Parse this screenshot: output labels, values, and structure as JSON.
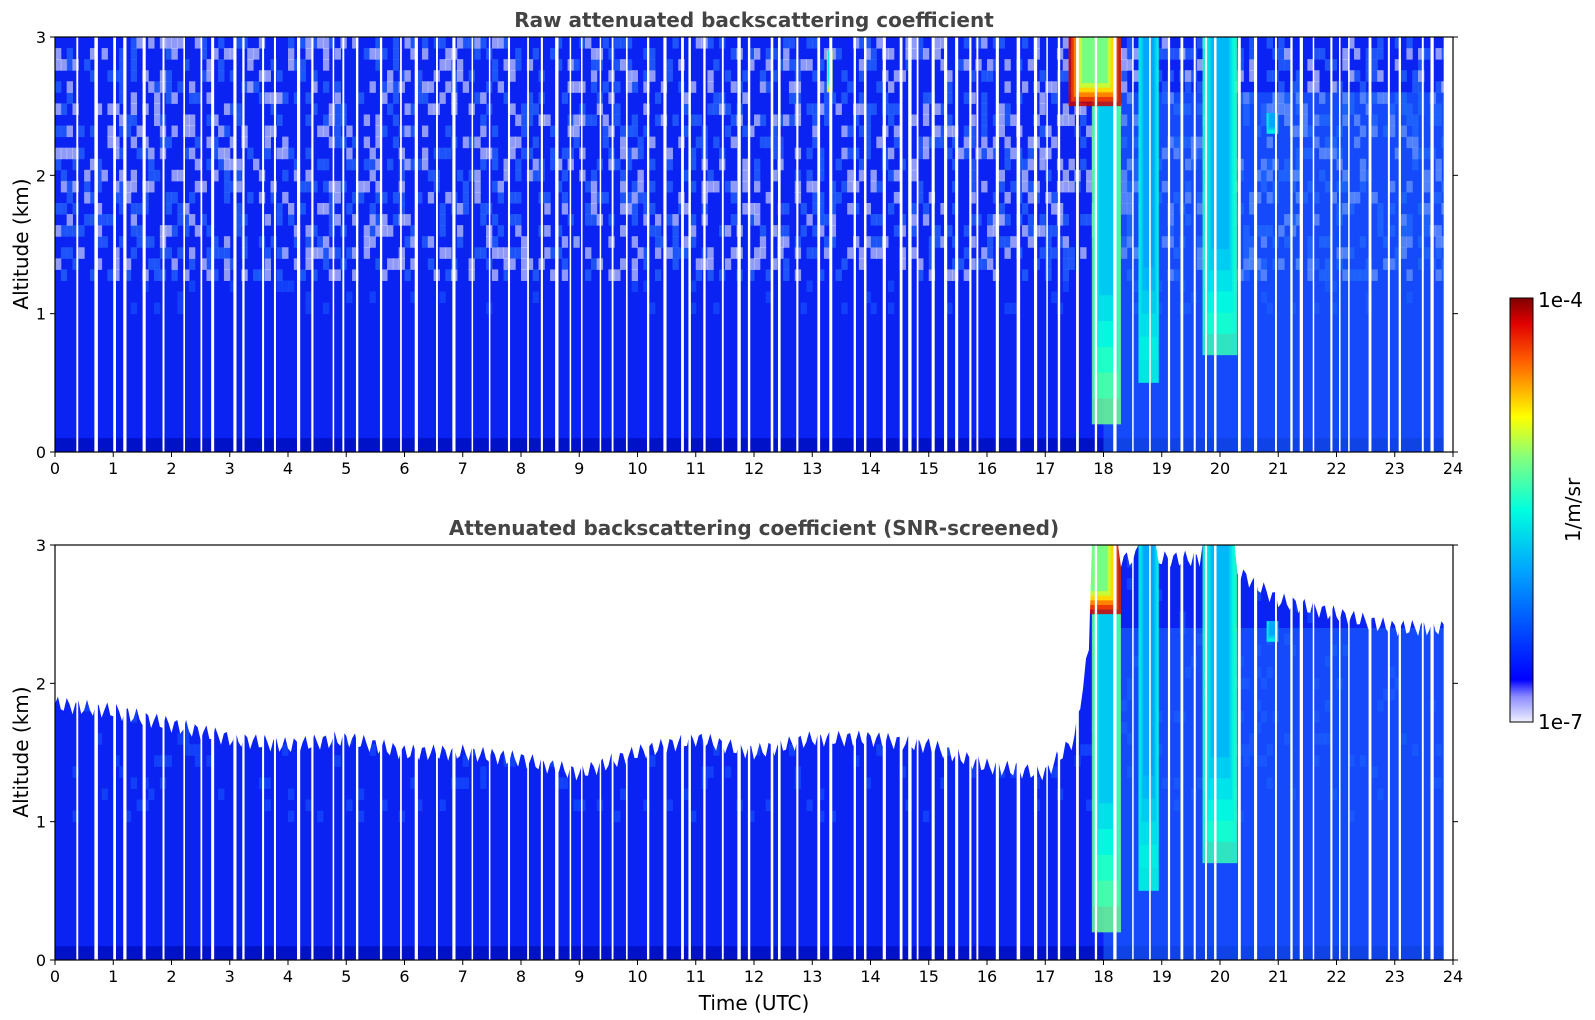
{
  "chart_data": [
    {
      "type": "heatmap",
      "title": "Raw attenuated backscattering coefficient",
      "xlabel": "",
      "ylabel": "Altitude (km)",
      "xlim": [
        0,
        24
      ],
      "ylim": [
        0,
        3
      ],
      "xticks": [
        "0",
        "1",
        "2",
        "3",
        "4",
        "5",
        "6",
        "7",
        "8",
        "9",
        "10",
        "11",
        "12",
        "13",
        "14",
        "15",
        "16",
        "17",
        "18",
        "19",
        "20",
        "21",
        "22",
        "23",
        "24"
      ],
      "yticks": [
        "0",
        "1",
        "2",
        "3"
      ],
      "screened": false
    },
    {
      "type": "heatmap",
      "title": "Attenuated backscattering coefficient (SNR-screened)",
      "xlabel": "Time (UTC)",
      "ylabel": "Altitude (km)",
      "xlim": [
        0,
        24
      ],
      "ylim": [
        0,
        3
      ],
      "xticks": [
        "0",
        "1",
        "2",
        "3",
        "4",
        "5",
        "6",
        "7",
        "8",
        "9",
        "10",
        "11",
        "12",
        "13",
        "14",
        "15",
        "16",
        "17",
        "18",
        "19",
        "20",
        "21",
        "22",
        "23",
        "24"
      ],
      "yticks": [
        "0",
        "1",
        "2",
        "3"
      ],
      "screened": true,
      "screen_top_km": [
        [
          0,
          1.85
        ],
        [
          1,
          1.8
        ],
        [
          2,
          1.7
        ],
        [
          3,
          1.6
        ],
        [
          4,
          1.55
        ],
        [
          5,
          1.6
        ],
        [
          6,
          1.5
        ],
        [
          7,
          1.5
        ],
        [
          8,
          1.45
        ],
        [
          9,
          1.35
        ],
        [
          10,
          1.5
        ],
        [
          11,
          1.6
        ],
        [
          12,
          1.5
        ],
        [
          13,
          1.6
        ],
        [
          14,
          1.6
        ],
        [
          15,
          1.55
        ],
        [
          16,
          1.4
        ],
        [
          17,
          1.35
        ],
        [
          17.5,
          1.6
        ],
        [
          18,
          2.9
        ],
        [
          19,
          2.9
        ],
        [
          20,
          2.9
        ],
        [
          21,
          2.6
        ],
        [
          22,
          2.5
        ],
        [
          23,
          2.4
        ],
        [
          23.9,
          2.4
        ]
      ]
    }
  ],
  "colorbar": {
    "label": "1/m/sr",
    "min_label": "1e-7",
    "max_label": "1e-4",
    "scale": "log",
    "colormap": "jet"
  },
  "features": {
    "aerosol_layer": {
      "top_km": 1.5,
      "color": "#0a1cf0"
    },
    "surface_band": {
      "top_km": 0.1,
      "color": "#0012c8"
    },
    "clouds": [
      {
        "t_start": 17.8,
        "t_end": 18.3,
        "top_km": 3.0,
        "bottom_km": 0.2,
        "level": 0.6
      },
      {
        "t_start": 18.6,
        "t_end": 18.95,
        "top_km": 3.0,
        "bottom_km": 0.5,
        "level": 0.5
      },
      {
        "t_start": 19.7,
        "t_end": 20.3,
        "top_km": 3.0,
        "bottom_km": 0.7,
        "level": 0.55
      },
      {
        "t_start": 20.8,
        "t_end": 21.0,
        "top_km": 2.45,
        "bottom_km": 2.3,
        "level": 0.5
      },
      {
        "t_start": 13.25,
        "t_end": 13.35,
        "top_km": 2.9,
        "bottom_km": 2.6,
        "level": 0.7
      },
      {
        "t_start": 17.4,
        "t_end": 18.3,
        "top_km": 3.0,
        "bottom_km": 2.5,
        "level": 0.95
      }
    ]
  }
}
